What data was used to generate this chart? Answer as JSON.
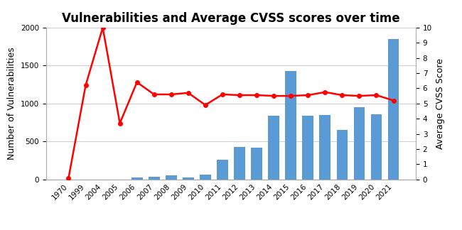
{
  "title": "Vulnerabilities and Average CVSS scores over time",
  "categories": [
    "1970",
    "1999",
    "2004",
    "2005",
    "2006",
    "2007",
    "2008",
    "2009",
    "2010",
    "2011",
    "2012",
    "2013",
    "2014",
    "2015",
    "2016",
    "2017",
    "2018",
    "2019",
    "2020",
    "2021"
  ],
  "vuln_counts": [
    0,
    0,
    0,
    0,
    30,
    35,
    50,
    30,
    60,
    260,
    430,
    420,
    840,
    1430,
    840,
    850,
    650,
    950,
    860,
    1850
  ],
  "cvss_scores": [
    0.1,
    6.2,
    10.0,
    3.7,
    6.4,
    5.6,
    5.6,
    5.7,
    4.9,
    5.6,
    5.55,
    5.55,
    5.5,
    5.5,
    5.55,
    5.75,
    5.55,
    5.5,
    5.55,
    5.2
  ],
  "bar_color": "#5B9BD5",
  "line_color": "#FF0000",
  "marker_color": "#FF0000",
  "ylabel_left": "Number of Vulnerabilities",
  "ylabel_right": "Average CVSS Score",
  "ylim_left": [
    0,
    2000
  ],
  "ylim_right": [
    0,
    10
  ],
  "yticks_left": [
    0,
    500,
    1000,
    1500,
    2000
  ],
  "yticks_right": [
    0,
    1,
    2,
    3,
    4,
    5,
    6,
    7,
    8,
    9,
    10
  ],
  "title_fontsize": 12,
  "axis_label_fontsize": 9,
  "tick_fontsize": 7.5,
  "background_color": "#ffffff",
  "grid_color": "#d0d0d0"
}
